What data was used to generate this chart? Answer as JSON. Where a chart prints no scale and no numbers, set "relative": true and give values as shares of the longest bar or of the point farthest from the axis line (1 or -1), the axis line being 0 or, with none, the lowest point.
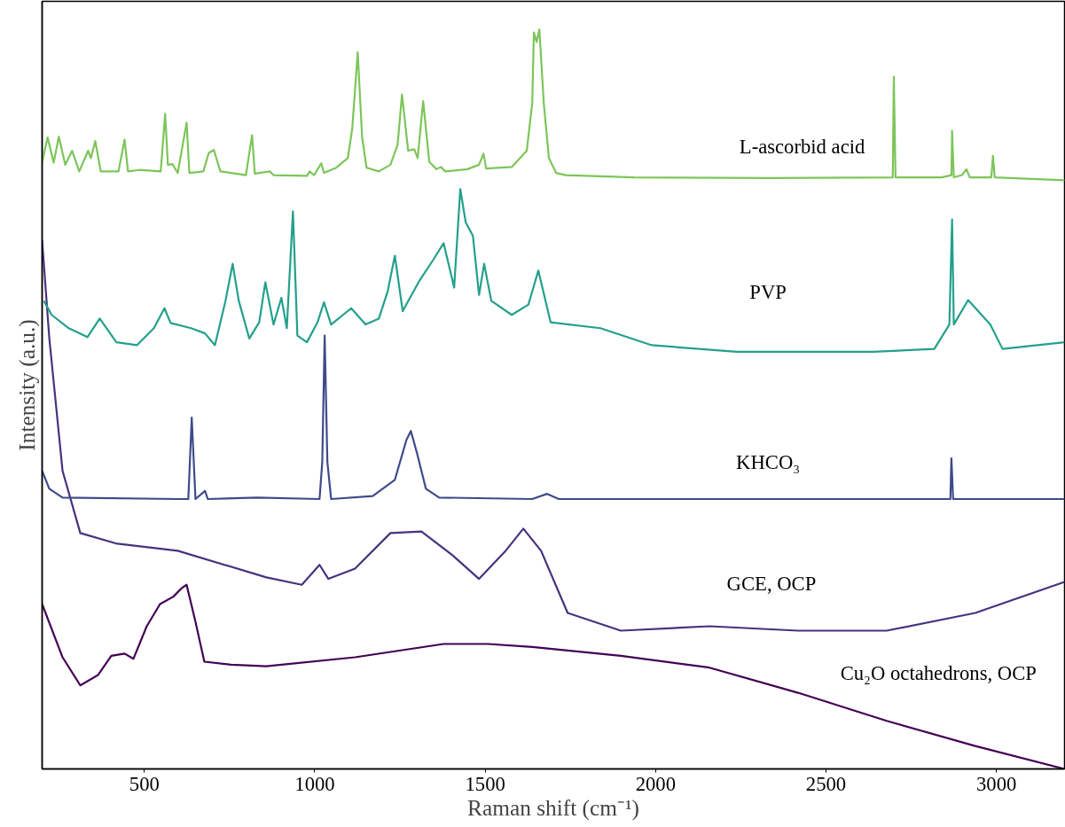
{
  "chart_data": {
    "type": "line",
    "relative": true,
    "xlabel": "Raman shift (cm⁻¹)",
    "ylabel": "Intensity (a.u.)",
    "xlim": [
      200,
      3200
    ],
    "xticks": [
      500,
      1000,
      1500,
      2000,
      2500,
      3000
    ],
    "tick_labels": "x",
    "grid": false,
    "legend": false,
    "marker": "none",
    "line_style": "solid",
    "series": [
      {
        "name": "Cu₂O octahedrons, OCP",
        "color": "#440154",
        "x": [
          200,
          260,
          312,
          364,
          403,
          442,
          468,
          507,
          546,
          585,
          611,
          624,
          650,
          676,
          754,
          858,
          1118,
          1378,
          1508,
          1638,
          1898,
          2158,
          2418,
          2678,
          2938,
          3200
        ],
        "values": [
          0.223,
          0.151,
          0.113,
          0.127,
          0.153,
          0.156,
          0.149,
          0.193,
          0.223,
          0.233,
          0.245,
          0.249,
          0.199,
          0.145,
          0.141,
          0.139,
          0.151,
          0.169,
          0.169,
          0.165,
          0.153,
          0.137,
          0.103,
          0.065,
          0.031,
          0
        ]
      },
      {
        "name": "GCE, OCP",
        "color": "#46337e",
        "x": [
          200,
          221,
          260,
          312,
          416,
          598,
          858,
          962,
          1014,
          1040,
          1118,
          1222,
          1313,
          1404,
          1482,
          1560,
          1612,
          1664,
          1742,
          1898,
          2158,
          2418,
          2678,
          2938,
          3200
        ],
        "values": [
          0.715,
          0.583,
          0.403,
          0.319,
          0.305,
          0.295,
          0.259,
          0.249,
          0.276,
          0.257,
          0.271,
          0.319,
          0.321,
          0.289,
          0.257,
          0.295,
          0.325,
          0.295,
          0.211,
          0.187,
          0.193,
          0.187,
          0.187,
          0.211,
          0.253
        ]
      },
      {
        "name": "KHCO₃",
        "color": "#3f4a8a",
        "x": [
          200,
          221,
          260,
          598,
          629,
          639,
          650,
          678,
          686,
          832,
          1014,
          1022,
          1029,
          1037,
          1048,
          1170,
          1235,
          1269,
          1282,
          1300,
          1326,
          1365,
          1638,
          1682,
          1716,
          2865,
          2868,
          2873,
          3200
        ],
        "values": [
          0.403,
          0.379,
          0.367,
          0.365,
          0.365,
          0.475,
          0.365,
          0.376,
          0.365,
          0.367,
          0.365,
          0.415,
          0.586,
          0.415,
          0.365,
          0.369,
          0.391,
          0.445,
          0.457,
          0.427,
          0.379,
          0.367,
          0.365,
          0.372,
          0.365,
          0.365,
          0.42,
          0.365,
          0.365
        ]
      },
      {
        "name": "PVP",
        "color": "#23a08b",
        "x": [
          205,
          228,
          278,
          333,
          369,
          418,
          478,
          528,
          559,
          577,
          637,
          678,
          707,
          738,
          759,
          777,
          808,
          837,
          855,
          879,
          902,
          918,
          936,
          949,
          977,
          1008,
          1027,
          1048,
          1107,
          1149,
          1188,
          1214,
          1235,
          1258,
          1308,
          1347,
          1378,
          1409,
          1427,
          1443,
          1464,
          1482,
          1497,
          1518,
          1578,
          1627,
          1656,
          1692,
          1838,
          1989,
          2238,
          2639,
          2818,
          2862,
          2870,
          2875,
          2917,
          2982,
          3018,
          3200
        ],
        "values": [
          0.633,
          0.614,
          0.596,
          0.584,
          0.609,
          0.577,
          0.573,
          0.596,
          0.623,
          0.603,
          0.596,
          0.589,
          0.573,
          0.633,
          0.683,
          0.633,
          0.582,
          0.604,
          0.658,
          0.601,
          0.637,
          0.596,
          0.754,
          0.586,
          0.577,
          0.604,
          0.631,
          0.601,
          0.623,
          0.601,
          0.609,
          0.646,
          0.694,
          0.619,
          0.661,
          0.688,
          0.711,
          0.651,
          0.784,
          0.739,
          0.721,
          0.641,
          0.683,
          0.633,
          0.614,
          0.628,
          0.674,
          0.604,
          0.596,
          0.573,
          0.564,
          0.564,
          0.568,
          0.601,
          0.743,
          0.601,
          0.634,
          0.601,
          0.568,
          0.577
        ]
      },
      {
        "name": "L-ascorbid acid",
        "color": "#7dc55a",
        "x": [
          200,
          216,
          234,
          249,
          268,
          288,
          309,
          335,
          343,
          356,
          372,
          424,
          442,
          452,
          486,
          548,
          561,
          569,
          582,
          598,
          624,
          632,
          673,
          689,
          704,
          723,
          798,
          816,
          824,
          868,
          879,
          977,
          985,
          998,
          1019,
          1027,
          1063,
          1097,
          1110,
          1126,
          1139,
          1152,
          1188,
          1222,
          1243,
          1256,
          1274,
          1292,
          1302,
          1318,
          1336,
          1357,
          1370,
          1383,
          1448,
          1482,
          1495,
          1503,
          1578,
          1622,
          1638,
          1643,
          1651,
          1659,
          1672,
          1687,
          1708,
          1737,
          1937,
          2337,
          2696,
          2699,
          2704,
          2839,
          2868,
          2870,
          2875,
          2899,
          2912,
          2922,
          2985,
          2990,
          2995,
          3200
        ],
        "values": [
          0.82,
          0.854,
          0.82,
          0.855,
          0.817,
          0.836,
          0.808,
          0.836,
          0.826,
          0.849,
          0.808,
          0.808,
          0.851,
          0.808,
          0.81,
          0.808,
          0.886,
          0.817,
          0.818,
          0.806,
          0.874,
          0.806,
          0.808,
          0.833,
          0.837,
          0.808,
          0.803,
          0.857,
          0.805,
          0.808,
          0.803,
          0.802,
          0.808,
          0.803,
          0.819,
          0.806,
          0.813,
          0.826,
          0.866,
          0.969,
          0.854,
          0.813,
          0.808,
          0.817,
          0.844,
          0.912,
          0.836,
          0.838,
          0.826,
          0.903,
          0.821,
          0.811,
          0.814,
          0.808,
          0.811,
          0.817,
          0.832,
          0.812,
          0.814,
          0.836,
          0.9,
          0.996,
          0.983,
          1.0,
          0.9,
          0.826,
          0.806,
          0.803,
          0.8,
          0.799,
          0.8,
          0.936,
          0.8,
          0.8,
          0.803,
          0.863,
          0.8,
          0.803,
          0.811,
          0.8,
          0.8,
          0.829,
          0.8,
          0.796
        ]
      }
    ]
  }
}
